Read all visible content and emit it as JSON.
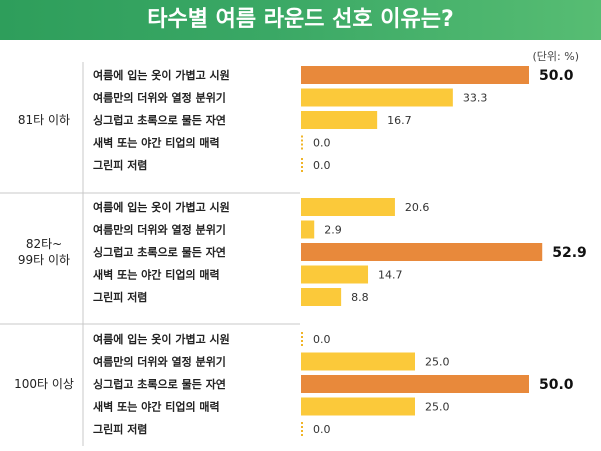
{
  "title": "타수별 여름 라운드 선호 이유는?",
  "unit": "(단위: %)",
  "colors": {
    "header": "#3aa865",
    "bar": "#fbc93a",
    "bar_highlight": "#e8893b",
    "zero_marker": "#f0b429",
    "divider": "#c8c8c8"
  },
  "chart_data": {
    "type": "bar",
    "orientation": "horizontal",
    "title": "타수별 여름 라운드 선호 이유는?",
    "unit": "(단위: %)",
    "xlim": [
      0,
      55
    ],
    "categories": [
      "여름에 입는 옷이 가볍고 시원",
      "여름만의 더위와 열정 분위기",
      "싱그럽고 초록으로 물든 자연",
      "새벽 또는 야간 티업의 매력",
      "그린피 저렴"
    ],
    "groups": [
      {
        "label": [
          "81타 이하"
        ],
        "values": [
          50.0,
          33.3,
          16.7,
          0.0,
          0.0
        ],
        "value_labels": [
          "50.0",
          "33.3",
          "16.7",
          "0.0",
          "0.0"
        ],
        "highlight": 0
      },
      {
        "label": [
          "82타~",
          "99타 이하"
        ],
        "values": [
          20.6,
          2.9,
          52.9,
          14.7,
          8.8
        ],
        "value_labels": [
          "20.6",
          "2.9",
          "52.9",
          "14.7",
          "8.8"
        ],
        "highlight": 2
      },
      {
        "label": [
          "100타 이상"
        ],
        "values": [
          0.0,
          25.0,
          50.0,
          25.0,
          0.0
        ],
        "value_labels": [
          "0.0",
          "25.0",
          "50.0",
          "25.0",
          "0.0"
        ],
        "highlight": 2
      }
    ]
  }
}
